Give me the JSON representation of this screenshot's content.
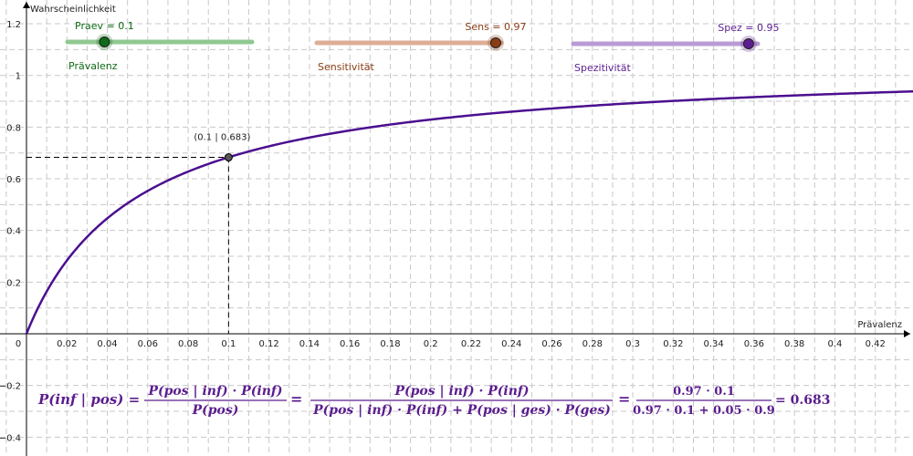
{
  "colors": {
    "curve": "#4b0f8f",
    "grid": "#c8c8c8",
    "praev": "#0e6b16",
    "praev_track": "#8fc891",
    "sens": "#8a3d12",
    "sens_track": "#dcae94",
    "spez": "#5b1d8e",
    "spez_track": "#b89bd6",
    "formula": "#5b1d8e"
  },
  "axes": {
    "y_label": "Wahrscheinlichkeit",
    "x_label": "Prävalenz",
    "x_ticks": [
      "0",
      "0.02",
      "0.04",
      "0.06",
      "0.08",
      "0.1",
      "0.12",
      "0.14",
      "0.16",
      "0.18",
      "0.2",
      "0.22",
      "0.24",
      "0.26",
      "0.28",
      "0.3",
      "0.32",
      "0.34",
      "0.36",
      "0.38",
      "0.4",
      "0.42"
    ],
    "y_ticks": [
      "1.2",
      "1",
      "0.8",
      "0.6",
      "0.4",
      "0.2",
      "−0.2",
      "−0.4"
    ]
  },
  "sliders": [
    {
      "id": "praev",
      "caption": "Praev = 0.1",
      "label": "Prävalenz",
      "value": 0.1,
      "min": 0,
      "max": 0.5
    },
    {
      "id": "sens",
      "caption": "Sens = 0.97",
      "label": "Sensitivität",
      "value": 0.97,
      "min": 0,
      "max": 1
    },
    {
      "id": "spez",
      "caption": "Spez = 0.95",
      "label": "Spezitivität",
      "value": 0.95,
      "min": 0,
      "max": 1
    }
  ],
  "point_label": "(0.1 | 0.683)",
  "formula": {
    "lhs": "P(inf | pos) =",
    "frac1_num": "P(pos | inf) · P(inf)",
    "frac1_den": "P(pos)",
    "eq1": "=",
    "frac2_num": "P(pos | inf) · P(inf)",
    "frac2_den": "P(pos | inf) · P(inf) + P(pos | ges) · P(ges)",
    "eq2": "=",
    "frac3_num": "0.97 · 0.1",
    "frac3_den": "0.97 · 0.1 + 0.05 · 0.9",
    "result": "= 0.683"
  },
  "chart_data": {
    "type": "line",
    "function": "P(inf|pos) = Sens·x / (Sens·x + (1 − Spez)·(1 − x))",
    "x_range": [
      0,
      0.44
    ],
    "y_range": [
      -0.45,
      1.27
    ],
    "sens": 0.97,
    "spez": 0.95,
    "marked_point": {
      "x": 0.1,
      "y": 0.683
    },
    "xlabel": "Prävalenz",
    "ylabel": "Wahrscheinlichkeit",
    "grid": true
  }
}
